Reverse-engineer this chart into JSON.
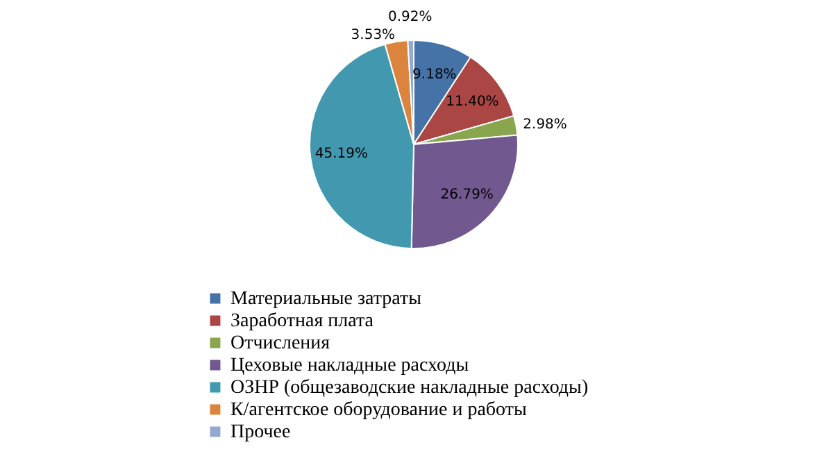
{
  "chart_data": {
    "type": "pie",
    "categories": [
      "Материальные затраты",
      "Заработная плата",
      "Отчисления",
      "Цеховые накладные расходы",
      "ОЗНР (общезаводские накладные расходы)",
      "К/агентское оборудование и работы",
      "Прочее"
    ],
    "values": [
      9.18,
      11.4,
      2.98,
      26.79,
      45.19,
      3.53,
      0.92
    ],
    "value_labels": [
      "9.18%",
      "11.40%",
      "2.98%",
      "26.79%",
      "45.19%",
      "3.53%",
      "0.92%"
    ],
    "colors": [
      "#4572a7",
      "#aa4643",
      "#89a54e",
      "#71588f",
      "#4198af",
      "#db843d",
      "#93a9cf"
    ],
    "legend": "bottom"
  }
}
